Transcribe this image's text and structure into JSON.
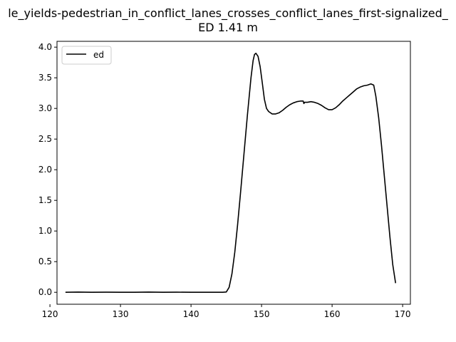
{
  "chart_data": {
    "type": "line",
    "title_line1": "le_yields-pedestrian_in_conflict_lanes_crosses_conflict_lanes_first-signalized_",
    "title_line2": "ED 1.41 m",
    "xlabel": "",
    "ylabel": "",
    "xlim": [
      121.0,
      171.1
    ],
    "ylim": [
      -0.195,
      4.095
    ],
    "xticks": [
      120,
      130,
      140,
      150,
      160,
      170
    ],
    "xtick_labels": [
      "120",
      "130",
      "140",
      "150",
      "160",
      "170"
    ],
    "yticks": [
      0.0,
      0.5,
      1.0,
      1.5,
      2.0,
      2.5,
      3.0,
      3.5,
      4.0
    ],
    "ytick_labels": [
      "0.0",
      "0.5",
      "1.0",
      "1.5",
      "2.0",
      "2.5",
      "3.0",
      "3.5",
      "4.0"
    ],
    "grid": false,
    "legend_position": "upper-left",
    "series": [
      {
        "name": "ed",
        "color": "#000000",
        "x": [
          122.2,
          124.0,
          126.0,
          128.0,
          130.0,
          132.0,
          134.0,
          136.0,
          138.0,
          140.0,
          142.0,
          143.5,
          144.5,
          145.0,
          145.4,
          145.8,
          146.2,
          146.6,
          147.0,
          147.5,
          148.0,
          148.5,
          148.8,
          149.0,
          149.2,
          149.5,
          149.8,
          150.1,
          150.4,
          150.7,
          151.0,
          151.5,
          152.0,
          152.5,
          153.0,
          153.5,
          154.0,
          154.5,
          155.0,
          155.5,
          155.9,
          156.0,
          156.1,
          156.5,
          157.0,
          157.5,
          158.0,
          158.5,
          159.0,
          159.5,
          160.0,
          160.5,
          161.0,
          161.5,
          162.0,
          162.5,
          163.0,
          163.5,
          164.0,
          164.5,
          165.0,
          165.5,
          165.9,
          166.2,
          166.6,
          167.0,
          167.4,
          167.8,
          168.2,
          168.6,
          169.0
        ],
        "y": [
          0.0,
          0.003,
          0.0,
          0.002,
          0.0,
          0.0,
          0.003,
          0.0,
          0.002,
          0.0,
          0.0,
          0.0,
          0.0,
          0.005,
          0.08,
          0.3,
          0.65,
          1.1,
          1.6,
          2.25,
          2.9,
          3.5,
          3.78,
          3.88,
          3.9,
          3.85,
          3.68,
          3.42,
          3.15,
          3.0,
          2.95,
          2.91,
          2.91,
          2.93,
          2.97,
          3.02,
          3.06,
          3.09,
          3.11,
          3.12,
          3.12,
          3.08,
          3.1,
          3.1,
          3.11,
          3.1,
          3.08,
          3.05,
          3.01,
          2.98,
          2.98,
          3.01,
          3.06,
          3.12,
          3.17,
          3.22,
          3.27,
          3.32,
          3.35,
          3.37,
          3.38,
          3.4,
          3.38,
          3.2,
          2.85,
          2.4,
          1.9,
          1.4,
          0.9,
          0.45,
          0.15
        ]
      }
    ]
  }
}
